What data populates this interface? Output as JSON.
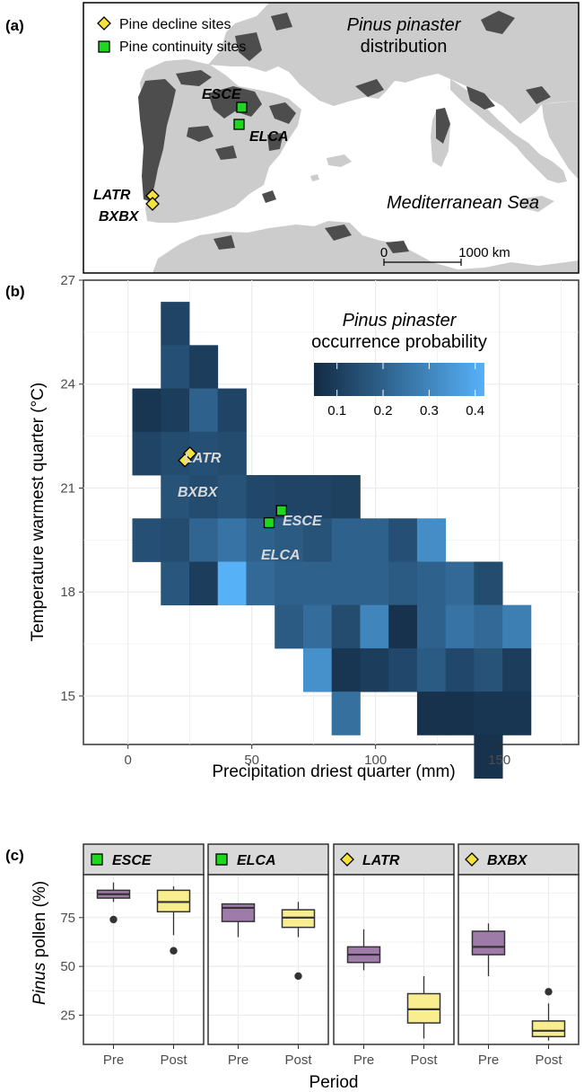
{
  "chart_data": [
    {
      "type": "map",
      "panel": "(a)",
      "title_italic": "Pinus pinaster",
      "title_rest": "distribution",
      "legend": [
        {
          "label": "Pine decline sites",
          "marker": "diamond",
          "color": "#f5e23a"
        },
        {
          "label": "Pine continuity sites",
          "marker": "square",
          "color": "#1ed71e"
        }
      ],
      "sites": [
        {
          "name": "ESCE",
          "type": "continuity"
        },
        {
          "name": "ELCA",
          "type": "continuity"
        },
        {
          "name": "LATR",
          "type": "decline"
        },
        {
          "name": "BXBX",
          "type": "decline"
        }
      ],
      "sea_label": "Mediterranean Sea",
      "scalebar": {
        "start": "0",
        "end": "1000 km"
      },
      "colors": {
        "land": "#cccccc",
        "distribution": "#4d4d4d",
        "water": "#ffffff"
      }
    },
    {
      "type": "heatmap",
      "panel": "(b)",
      "xlabel": "Precipitation driest quarter (mm)",
      "ylabel": "Temperature warmest quarter (°C)",
      "xlim": [
        -18,
        182
      ],
      "ylim": [
        13.6,
        27.0
      ],
      "xticks": [
        0,
        50,
        100,
        150
      ],
      "yticks": [
        15,
        18,
        21,
        24,
        27
      ],
      "grid": true,
      "legend_title_italic": "Pinus pinaster",
      "legend_title_rest": "occurrence probability",
      "legend_ticks": [
        "0.1",
        "0.2",
        "0.3",
        "0.4"
      ],
      "color_range": [
        0.05,
        0.42
      ],
      "color_low": "#132b43",
      "color_high": "#56b1f7",
      "cell_width_mm": 11.5,
      "cell_height_c": 1.25,
      "cells": [
        {
          "x": 19.0,
          "y": 25.75,
          "p": 0.12
        },
        {
          "x": 19.0,
          "y": 24.5,
          "p": 0.15
        },
        {
          "x": 30.5,
          "y": 24.5,
          "p": 0.1
        },
        {
          "x": 7.5,
          "y": 23.25,
          "p": 0.08
        },
        {
          "x": 19.0,
          "y": 23.25,
          "p": 0.1
        },
        {
          "x": 30.5,
          "y": 23.25,
          "p": 0.2
        },
        {
          "x": 42.0,
          "y": 23.25,
          "p": 0.12
        },
        {
          "x": 7.5,
          "y": 22.0,
          "p": 0.12
        },
        {
          "x": 19.0,
          "y": 22.0,
          "p": 0.14
        },
        {
          "x": 30.5,
          "y": 22.0,
          "p": 0.15
        },
        {
          "x": 42.0,
          "y": 22.0,
          "p": 0.14
        },
        {
          "x": 19.0,
          "y": 20.75,
          "p": 0.16
        },
        {
          "x": 30.5,
          "y": 20.75,
          "p": 0.14
        },
        {
          "x": 42.0,
          "y": 20.75,
          "p": 0.16
        },
        {
          "x": 53.5,
          "y": 20.75,
          "p": 0.13
        },
        {
          "x": 65.0,
          "y": 20.75,
          "p": 0.12
        },
        {
          "x": 76.5,
          "y": 20.75,
          "p": 0.12
        },
        {
          "x": 88.0,
          "y": 20.75,
          "p": 0.11
        },
        {
          "x": 7.5,
          "y": 19.5,
          "p": 0.15
        },
        {
          "x": 19.0,
          "y": 19.5,
          "p": 0.14
        },
        {
          "x": 30.5,
          "y": 19.5,
          "p": 0.21
        },
        {
          "x": 42.0,
          "y": 19.5,
          "p": 0.25
        },
        {
          "x": 53.5,
          "y": 19.5,
          "p": 0.2
        },
        {
          "x": 65.0,
          "y": 19.5,
          "p": 0.18
        },
        {
          "x": 76.5,
          "y": 19.5,
          "p": 0.16
        },
        {
          "x": 88.0,
          "y": 19.5,
          "p": 0.2
        },
        {
          "x": 99.5,
          "y": 19.5,
          "p": 0.2
        },
        {
          "x": 111.0,
          "y": 19.5,
          "p": 0.15
        },
        {
          "x": 122.5,
          "y": 19.5,
          "p": 0.32
        },
        {
          "x": 19.0,
          "y": 18.25,
          "p": 0.17
        },
        {
          "x": 30.5,
          "y": 18.25,
          "p": 0.1
        },
        {
          "x": 42.0,
          "y": 18.25,
          "p": 0.42
        },
        {
          "x": 53.5,
          "y": 18.25,
          "p": 0.22
        },
        {
          "x": 65.0,
          "y": 18.25,
          "p": 0.2
        },
        {
          "x": 76.5,
          "y": 18.25,
          "p": 0.2
        },
        {
          "x": 88.0,
          "y": 18.25,
          "p": 0.2
        },
        {
          "x": 99.5,
          "y": 18.25,
          "p": 0.2
        },
        {
          "x": 111.0,
          "y": 18.25,
          "p": 0.18
        },
        {
          "x": 122.5,
          "y": 18.25,
          "p": 0.2
        },
        {
          "x": 134.0,
          "y": 18.25,
          "p": 0.22
        },
        {
          "x": 145.5,
          "y": 18.25,
          "p": 0.14
        },
        {
          "x": 65.0,
          "y": 17.0,
          "p": 0.18
        },
        {
          "x": 76.5,
          "y": 17.0,
          "p": 0.23
        },
        {
          "x": 88.0,
          "y": 17.0,
          "p": 0.14
        },
        {
          "x": 99.5,
          "y": 17.0,
          "p": 0.3
        },
        {
          "x": 111.0,
          "y": 17.0,
          "p": 0.07
        },
        {
          "x": 122.5,
          "y": 17.0,
          "p": 0.2
        },
        {
          "x": 134.0,
          "y": 17.0,
          "p": 0.25
        },
        {
          "x": 145.5,
          "y": 17.0,
          "p": 0.22
        },
        {
          "x": 157.0,
          "y": 17.0,
          "p": 0.28
        },
        {
          "x": 76.5,
          "y": 15.75,
          "p": 0.33
        },
        {
          "x": 88.0,
          "y": 15.75,
          "p": 0.08
        },
        {
          "x": 99.5,
          "y": 15.75,
          "p": 0.1
        },
        {
          "x": 111.0,
          "y": 15.75,
          "p": 0.13
        },
        {
          "x": 122.5,
          "y": 15.75,
          "p": 0.18
        },
        {
          "x": 134.0,
          "y": 15.75,
          "p": 0.13
        },
        {
          "x": 145.5,
          "y": 15.75,
          "p": 0.16
        },
        {
          "x": 157.0,
          "y": 15.75,
          "p": 0.1
        },
        {
          "x": 88.0,
          "y": 14.5,
          "p": 0.24
        },
        {
          "x": 122.5,
          "y": 14.5,
          "p": 0.07
        },
        {
          "x": 134.0,
          "y": 14.5,
          "p": 0.07
        },
        {
          "x": 145.5,
          "y": 14.5,
          "p": 0.08
        },
        {
          "x": 157.0,
          "y": 14.5,
          "p": 0.08
        },
        {
          "x": 145.5,
          "y": 13.25,
          "p": 0.07
        }
      ],
      "sites": [
        {
          "name": "LATR",
          "x": 25,
          "y": 22.0,
          "type": "decline"
        },
        {
          "name": "BXBX",
          "x": 23,
          "y": 21.8,
          "type": "decline"
        },
        {
          "name": "ESCE",
          "x": 62,
          "y": 20.35,
          "type": "continuity"
        },
        {
          "name": "ELCA",
          "x": 57,
          "y": 20.0,
          "type": "continuity"
        }
      ]
    },
    {
      "type": "box",
      "panel": "(c)",
      "xlabel": "Period",
      "ylabel_italic": "Pinus",
      "ylabel_rest": " pollen (%)",
      "ylim": [
        10,
        97
      ],
      "yticks": [
        25,
        50,
        75
      ],
      "categories": [
        "Pre",
        "Post"
      ],
      "colors": {
        "Pre": "#9e7ba8",
        "Post": "#f8ee8f"
      },
      "facets": [
        {
          "name": "ESCE",
          "type": "continuity",
          "boxes": [
            {
              "period": "Pre",
              "min": 83,
              "q1": 85,
              "median": 87,
              "q3": 89,
              "max": 93,
              "outliers": [
                74
              ]
            },
            {
              "period": "Post",
              "min": 66,
              "q1": 78,
              "median": 83,
              "q3": 89,
              "max": 91,
              "outliers": [
                58
              ]
            }
          ]
        },
        {
          "name": "ELCA",
          "type": "continuity",
          "boxes": [
            {
              "period": "Pre",
              "min": 65,
              "q1": 73,
              "median": 80,
              "q3": 82,
              "max": 82,
              "outliers": []
            },
            {
              "period": "Post",
              "min": 65,
              "q1": 70,
              "median": 75,
              "q3": 79,
              "max": 83,
              "outliers": [
                45
              ]
            }
          ]
        },
        {
          "name": "LATR",
          "type": "decline",
          "boxes": [
            {
              "period": "Pre",
              "min": 48,
              "q1": 52,
              "median": 56,
              "q3": 60,
              "max": 69,
              "outliers": []
            },
            {
              "period": "Post",
              "min": 13,
              "q1": 21,
              "median": 28,
              "q3": 36,
              "max": 45,
              "outliers": []
            }
          ]
        },
        {
          "name": "BXBX",
          "type": "decline",
          "boxes": [
            {
              "period": "Pre",
              "min": 45,
              "q1": 56,
              "median": 60,
              "q3": 68,
              "max": 72,
              "outliers": []
            },
            {
              "period": "Post",
              "min": 12,
              "q1": 14,
              "median": 17,
              "q3": 22,
              "max": 31,
              "outliers": [
                37
              ]
            }
          ]
        }
      ]
    }
  ]
}
